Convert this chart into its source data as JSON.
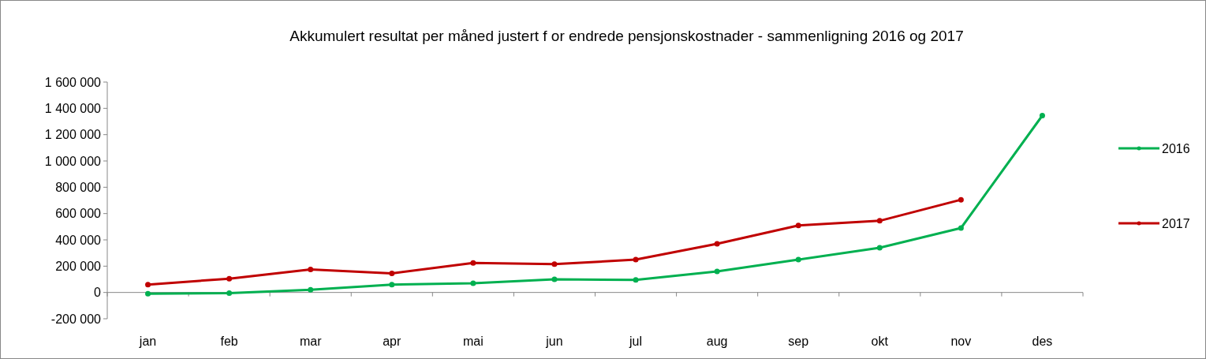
{
  "chart_data": {
    "type": "line",
    "title": "Akkumulert  resultat  per måned justert f or endrede pensjonskostnader - sammenligning 2016  og 2017",
    "categories": [
      "jan",
      "feb",
      "mar",
      "apr",
      "mai",
      "jun",
      "jul",
      "aug",
      "sep",
      "okt",
      "nov",
      "des"
    ],
    "series": [
      {
        "name": "2016",
        "color": "#00b050",
        "values": [
          -10000,
          -5000,
          20000,
          60000,
          70000,
          100000,
          95000,
          160000,
          250000,
          340000,
          490000,
          1345000
        ]
      },
      {
        "name": "2017",
        "color": "#c00000",
        "values": [
          60000,
          105000,
          175000,
          145000,
          225000,
          215000,
          250000,
          370000,
          510000,
          545000,
          705000,
          null
        ]
      }
    ],
    "ylim": [
      -200000,
      1600000
    ],
    "yticks": [
      {
        "value": -200000,
        "label": "-200 000"
      },
      0,
      {
        "value": 200000,
        "label": "200 000"
      },
      {
        "value": 400000,
        "label": "400 000"
      },
      {
        "value": 600000,
        "label": "600 000"
      },
      {
        "value": 800000,
        "label": "800 000"
      },
      {
        "value": 1000000,
        "label": "1 000 000"
      },
      {
        "value": 1200000,
        "label": "1 200 000"
      },
      {
        "value": 1400000,
        "label": "1 400 000"
      },
      {
        "value": 1600000,
        "label": "1 600 000"
      }
    ],
    "legend": "right",
    "marker": "circle",
    "line_style": "solid"
  }
}
